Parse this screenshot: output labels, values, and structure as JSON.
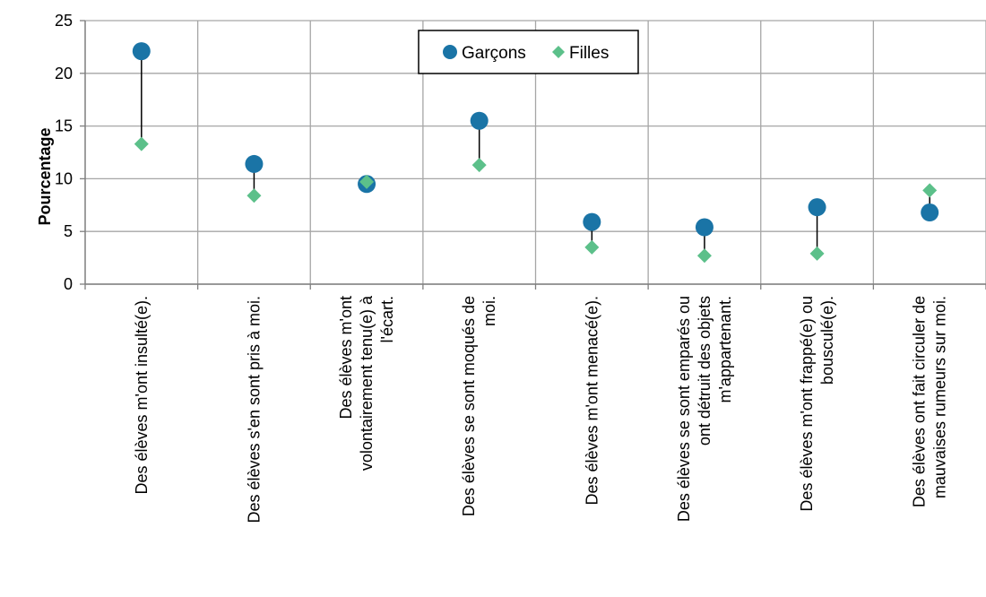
{
  "chart_data": {
    "type": "scatter",
    "ylabel": "Pourcentage",
    "ylim": [
      0,
      25
    ],
    "yticks": [
      0,
      5,
      10,
      15,
      20,
      25
    ],
    "grid": true,
    "legend_position": "top-center",
    "categories": [
      [
        "Des élèves m'ont insulté(e)."
      ],
      [
        "Des élèves s'en sont pris à moi."
      ],
      [
        "Des élèves m'ont",
        "volontairement tenu(e) à",
        "l'écart."
      ],
      [
        "Des élèves se sont moqués de",
        "moi."
      ],
      [
        "Des élèves m'ont menacé(e)."
      ],
      [
        "Des élèves se sont emparés ou",
        "ont détruit des objets",
        "m'appartenant."
      ],
      [
        "Des élèves m'ont frappé(e) ou",
        "bousculé(e)."
      ],
      [
        "Des élèves ont fait circuler de",
        "mauvaises rumeurs sur moi."
      ]
    ],
    "series": [
      {
        "name": "Garçons",
        "marker": "circle",
        "color": "#1a74a6",
        "values": [
          22.1,
          11.4,
          9.5,
          15.5,
          5.9,
          5.4,
          7.3,
          6.8
        ]
      },
      {
        "name": "Filles",
        "marker": "diamond",
        "color": "#5cc08a",
        "values": [
          13.3,
          8.4,
          9.7,
          11.3,
          3.5,
          2.7,
          2.9,
          8.9
        ]
      }
    ]
  }
}
